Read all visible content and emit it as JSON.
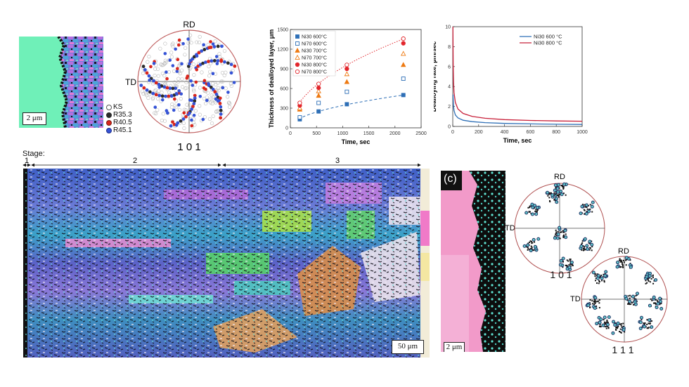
{
  "micrograph_a": {
    "scale": "2 μm",
    "legend": [
      {
        "label": "KS",
        "color": "#ffffff",
        "stroke": "#555555"
      },
      {
        "label": "R35.3",
        "color": "#2b2b2b",
        "stroke": "#2b2b2b"
      },
      {
        "label": "R40.5",
        "color": "#d9261c",
        "stroke": "#7a1a10"
      },
      {
        "label": "R45.1",
        "color": "#3553d6",
        "stroke": "#1c2c88"
      }
    ]
  },
  "pole_figure_a": {
    "top": "RD",
    "left": "TD",
    "caption": "1 0 1"
  },
  "chart_data": [
    {
      "type": "scatter",
      "title": "",
      "xlabel": "Time, sec",
      "ylabel": "Thickness of dealloyed layer, μm",
      "xlim": [
        0,
        2500
      ],
      "ylim": [
        0,
        1500
      ],
      "xticks": [
        0,
        500,
        1000,
        1500,
        2000,
        2500
      ],
      "yticks": [
        0,
        300,
        600,
        900,
        1200,
        1500
      ],
      "series": [
        {
          "name": "Ni30 600°C",
          "marker": "square",
          "filled": true,
          "color": "#2e6fb6",
          "x": [
            180,
            540,
            1080,
            2160
          ],
          "y": [
            130,
            250,
            360,
            500
          ]
        },
        {
          "name": "Ni70 600°C",
          "marker": "square",
          "filled": false,
          "color": "#2e6fb6",
          "x": [
            180,
            540,
            1080,
            2160
          ],
          "y": [
            160,
            380,
            550,
            750
          ]
        },
        {
          "name": "Ni30 700°C",
          "marker": "triangle",
          "filled": true,
          "color": "#ee7a12",
          "x": [
            180,
            540,
            1080,
            2160
          ],
          "y": [
            280,
            490,
            700,
            960
          ]
        },
        {
          "name": "Ni70 700°C",
          "marker": "triangle",
          "filled": false,
          "color": "#ee7a12",
          "x": [
            180,
            540,
            1080,
            2160
          ],
          "y": [
            300,
            560,
            820,
            1130
          ]
        },
        {
          "name": "Ni30 800°C",
          "marker": "circle",
          "filled": true,
          "color": "#e2262c",
          "x": [
            180,
            540,
            1080,
            2160
          ],
          "y": [
            340,
            610,
            900,
            1290
          ]
        },
        {
          "name": "Ni70 800°C",
          "marker": "circle",
          "filled": false,
          "color": "#e2262c",
          "x": [
            180,
            540,
            1080,
            2160
          ],
          "y": [
            380,
            670,
            960,
            1360
          ]
        }
      ],
      "fits": [
        {
          "series": "Ni30 600°C",
          "style": "dashed",
          "color": "#2e6fb6"
        },
        {
          "series": "Ni70 800°C",
          "style": "dotted",
          "color": "#e2262c"
        }
      ]
    },
    {
      "type": "line",
      "title": "",
      "xlabel": "Time, sec",
      "ylabel": "Dealloying rate, μm/sec",
      "xlim": [
        0,
        1000
      ],
      "ylim": [
        0,
        10
      ],
      "xticks": [
        0,
        200,
        400,
        600,
        800,
        1000
      ],
      "yticks": [
        0,
        2,
        4,
        6,
        8,
        10
      ],
      "series": [
        {
          "name": "Ni30 600 °C",
          "color": "#2e6fb6",
          "x": [
            2,
            5,
            10,
            20,
            40,
            80,
            150,
            250,
            400,
            600,
            800,
            1000
          ],
          "y": [
            3.2,
            2.2,
            1.6,
            1.15,
            0.85,
            0.62,
            0.48,
            0.38,
            0.3,
            0.25,
            0.22,
            0.2
          ]
        },
        {
          "name": "Ni30 800 °C",
          "color": "#c8203a",
          "x": [
            1,
            3,
            6,
            10,
            20,
            40,
            80,
            150,
            250,
            400,
            600,
            800,
            1000
          ],
          "y": [
            10,
            6.2,
            4.4,
            3.4,
            2.4,
            1.75,
            1.3,
            1.0,
            0.82,
            0.68,
            0.6,
            0.55,
            0.52
          ]
        }
      ]
    }
  ],
  "stage_bar": {
    "title": "Stage:",
    "stages": [
      "1",
      "2",
      "3"
    ]
  },
  "main_map": {
    "scale": "50 μm"
  },
  "micrograph_c": {
    "panel_label": "(c)",
    "scale": "2 μm"
  },
  "pole_figure_c1": {
    "top": "RD",
    "left": "TD",
    "caption": "1 0 1"
  },
  "pole_figure_c2": {
    "top": "RD",
    "left": "TD",
    "caption": "1 1 1"
  }
}
